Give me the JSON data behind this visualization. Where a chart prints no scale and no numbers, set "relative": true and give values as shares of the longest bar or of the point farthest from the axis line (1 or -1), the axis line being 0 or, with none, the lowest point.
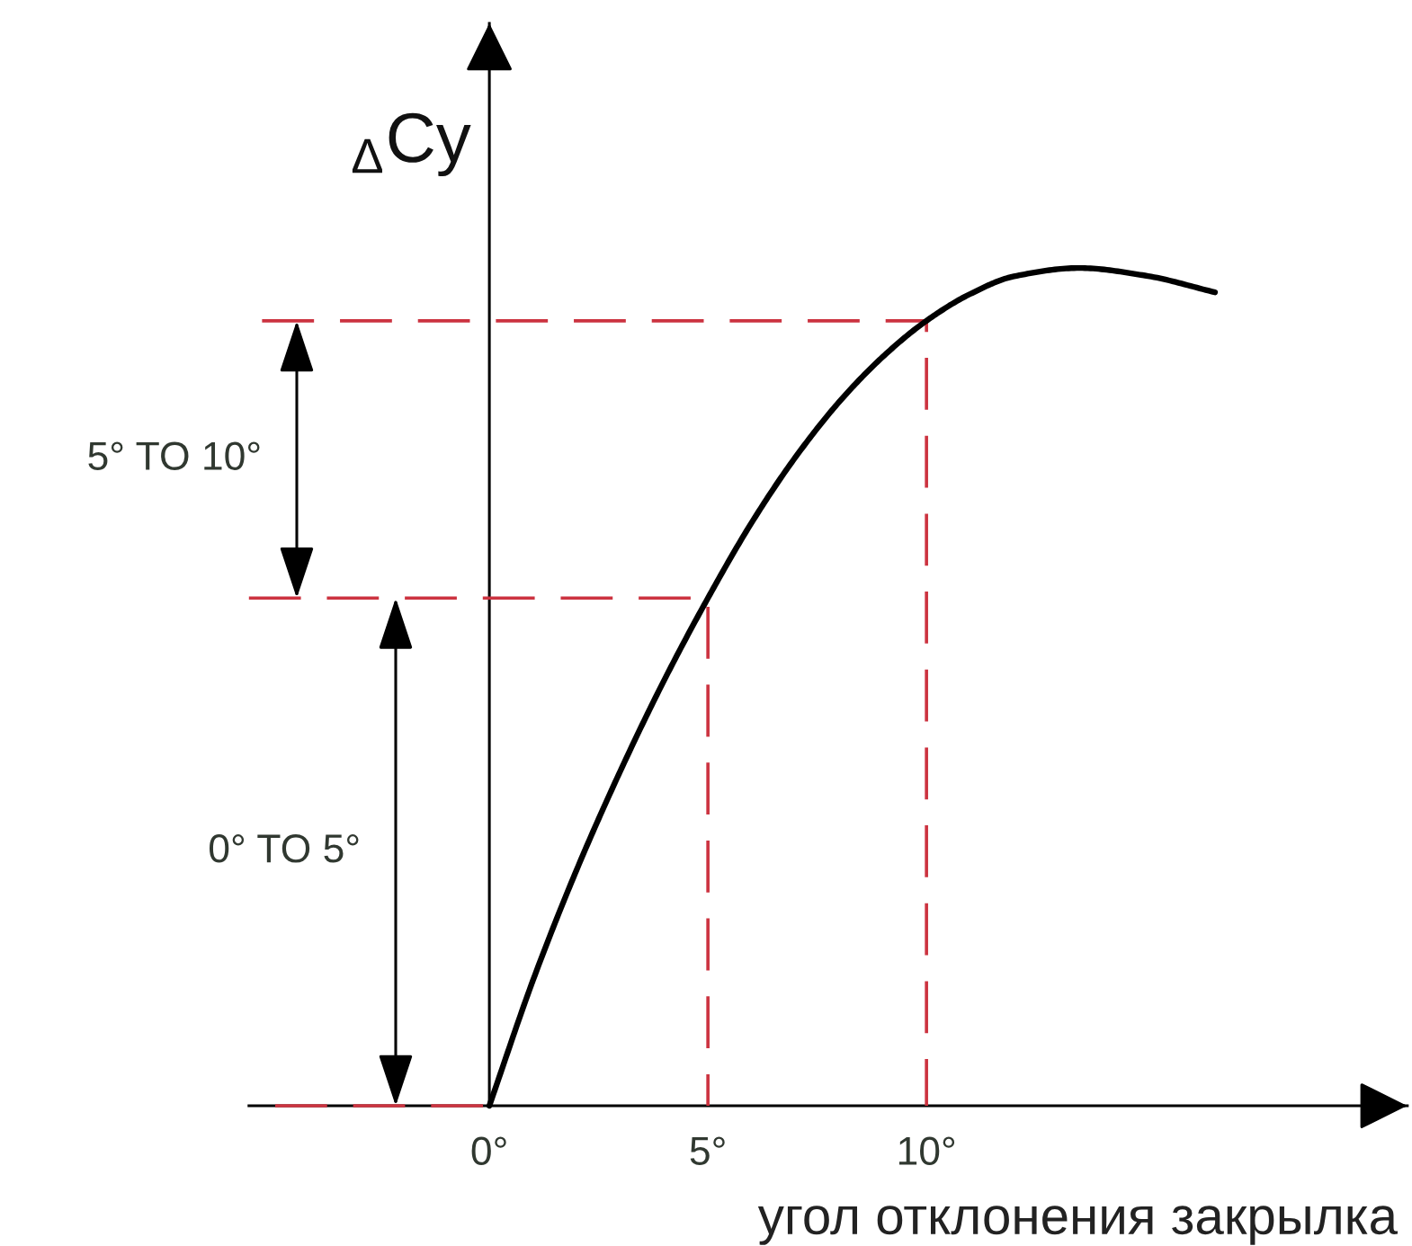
{
  "chart_data": {
    "type": "line",
    "relative": true,
    "ylabel": "$_{Δ}$Cy",
    "xlabel": "угол отклонения закрылка",
    "xlim": [
      -5.5,
      21
    ],
    "xticks": [
      {
        "value": 0,
        "label": "0°"
      },
      {
        "value": 5,
        "label": "5°"
      },
      {
        "value": 10,
        "label": "10°"
      }
    ],
    "series": [
      {
        "color": "#000000",
        "line_style": "solid",
        "x": [
          0,
          1,
          2,
          3,
          4,
          5,
          6,
          7,
          8,
          9,
          10,
          11,
          12,
          13.5,
          15,
          16.6
        ],
        "values": [
          0,
          0.15,
          0.282,
          0.4,
          0.508,
          0.606,
          0.696,
          0.774,
          0.84,
          0.894,
          0.937,
          0.969,
          0.99,
          1,
          0.991,
          0.971
        ]
      },
      {
        "color": "#cc3340",
        "line_style": "dashed",
        "x": [
          -4.9,
          0
        ],
        "values": [
          0,
          0
        ]
      },
      {
        "color": "#cc3340",
        "line_style": "dashed",
        "x": [
          -5.5,
          5,
          5
        ],
        "values": [
          0.606,
          0.606,
          0
        ]
      },
      {
        "color": "#cc3340",
        "line_style": "dashed",
        "x": [
          -5.2,
          10,
          10
        ],
        "values": [
          0.937,
          0.937,
          0
        ]
      }
    ],
    "annotations": [
      "5° TO 10°",
      "0° TO 5°"
    ]
  }
}
